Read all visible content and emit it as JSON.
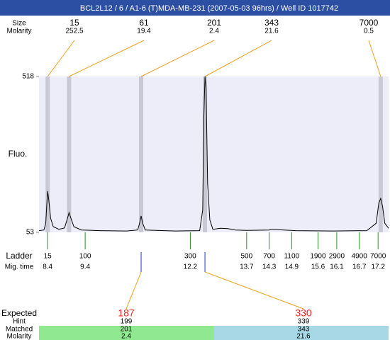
{
  "chart_data": {
    "type": "electropherogram",
    "title": "BCL2L12 / 6 / A1-6 (T)MDA-MB-231 (2007-05-03 96hrs) / Well ID 1017742",
    "y_label": "Fluo.",
    "ylim": [
      53,
      518
    ],
    "yticks": [
      53,
      518
    ],
    "xlim": [
      8.17,
      17.48
    ],
    "trace": {
      "color": "#000000",
      "x": [
        8.17,
        8.3,
        8.35,
        8.38,
        8.4,
        8.43,
        8.48,
        8.55,
        8.7,
        8.85,
        8.93,
        8.97,
        9.02,
        9.1,
        9.3,
        9.8,
        10.5,
        10.8,
        10.86,
        10.89,
        10.93,
        11.0,
        11.8,
        12.45,
        12.53,
        12.56,
        12.59,
        12.62,
        12.66,
        12.72,
        12.8,
        13.0,
        13.2,
        13.4,
        13.7,
        14.3,
        14.35,
        15.0,
        16.0,
        16.9,
        17.15,
        17.22,
        17.27,
        17.32,
        17.38,
        17.48
      ],
      "values": [
        58,
        60,
        80,
        140,
        176,
        150,
        95,
        70,
        62,
        66,
        95,
        112,
        95,
        70,
        60,
        58,
        57,
        60,
        85,
        102,
        80,
        60,
        57,
        58,
        120,
        400,
        518,
        480,
        200,
        90,
        62,
        65,
        64,
        60,
        59,
        60,
        62,
        58,
        57,
        58,
        80,
        140,
        154,
        130,
        80,
        65
      ]
    },
    "peaks": {
      "size_label": "Size",
      "molarity_label": "Molarity",
      "sizes": [
        15,
        61,
        201,
        343,
        7000
      ],
      "molarity": [
        252.5,
        19.4,
        2.4,
        21.6,
        0.5
      ],
      "times": [
        8.4,
        8.97,
        10.89,
        12.59,
        17.27
      ]
    },
    "ladder": {
      "label": "Ladder",
      "time_label": "Mig. time",
      "sizes": [
        15,
        100,
        300,
        500,
        700,
        1100,
        1900,
        2900,
        4900,
        7000
      ],
      "times": [
        8.4,
        9.4,
        12.2,
        13.7,
        14.3,
        14.9,
        15.6,
        16.1,
        16.7,
        17.2
      ]
    },
    "expected": {
      "label": "Expected",
      "hint_label": "Hint",
      "matched_label": "Matched",
      "molarity_label": "Molarity",
      "values": [
        187,
        330
      ],
      "hint": [
        199,
        339
      ],
      "matched": [
        201,
        343
      ],
      "molarity": [
        2.4,
        21.6
      ]
    }
  }
}
